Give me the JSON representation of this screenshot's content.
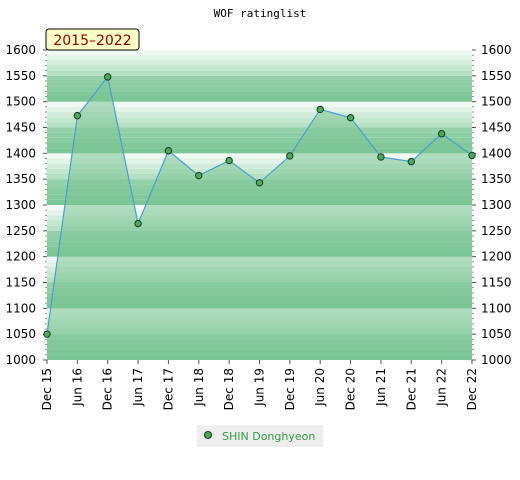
{
  "chart_data": {
    "type": "area",
    "title": "WOF ratinglist",
    "period_label": "2015–2022",
    "categories": [
      "Dec 15",
      "Jun 16",
      "Dec 16",
      "Jun 17",
      "Dec 17",
      "Jun 18",
      "Dec 18",
      "Jun 19",
      "Dec 19",
      "Jun 20",
      "Dec 20",
      "Jun 21",
      "Dec 21",
      "Jun 22",
      "Dec 22"
    ],
    "series": [
      {
        "name": "SHIN Donghyeon",
        "values": [
          1050,
          1473,
          1548,
          1264,
          1405,
          1357,
          1386,
          1343,
          1395,
          1485,
          1469,
          1393,
          1384,
          1438,
          1396
        ]
      }
    ],
    "y_ticks": [
      "1000",
      "1050",
      "1100",
      "1150",
      "1200",
      "1250",
      "1300",
      "1350",
      "1400",
      "1450",
      "1500",
      "1550",
      "1600"
    ],
    "ylim": [
      1000,
      1600
    ],
    "legend_position": "bottom",
    "grid": true,
    "colors": {
      "line": "#4a9fd0",
      "fill": "#7cc596",
      "marker": "#4fa860",
      "badge_bg": "#ffffc8",
      "badge_text": "#8b0000",
      "legend_text": "#3a9a4a"
    }
  }
}
